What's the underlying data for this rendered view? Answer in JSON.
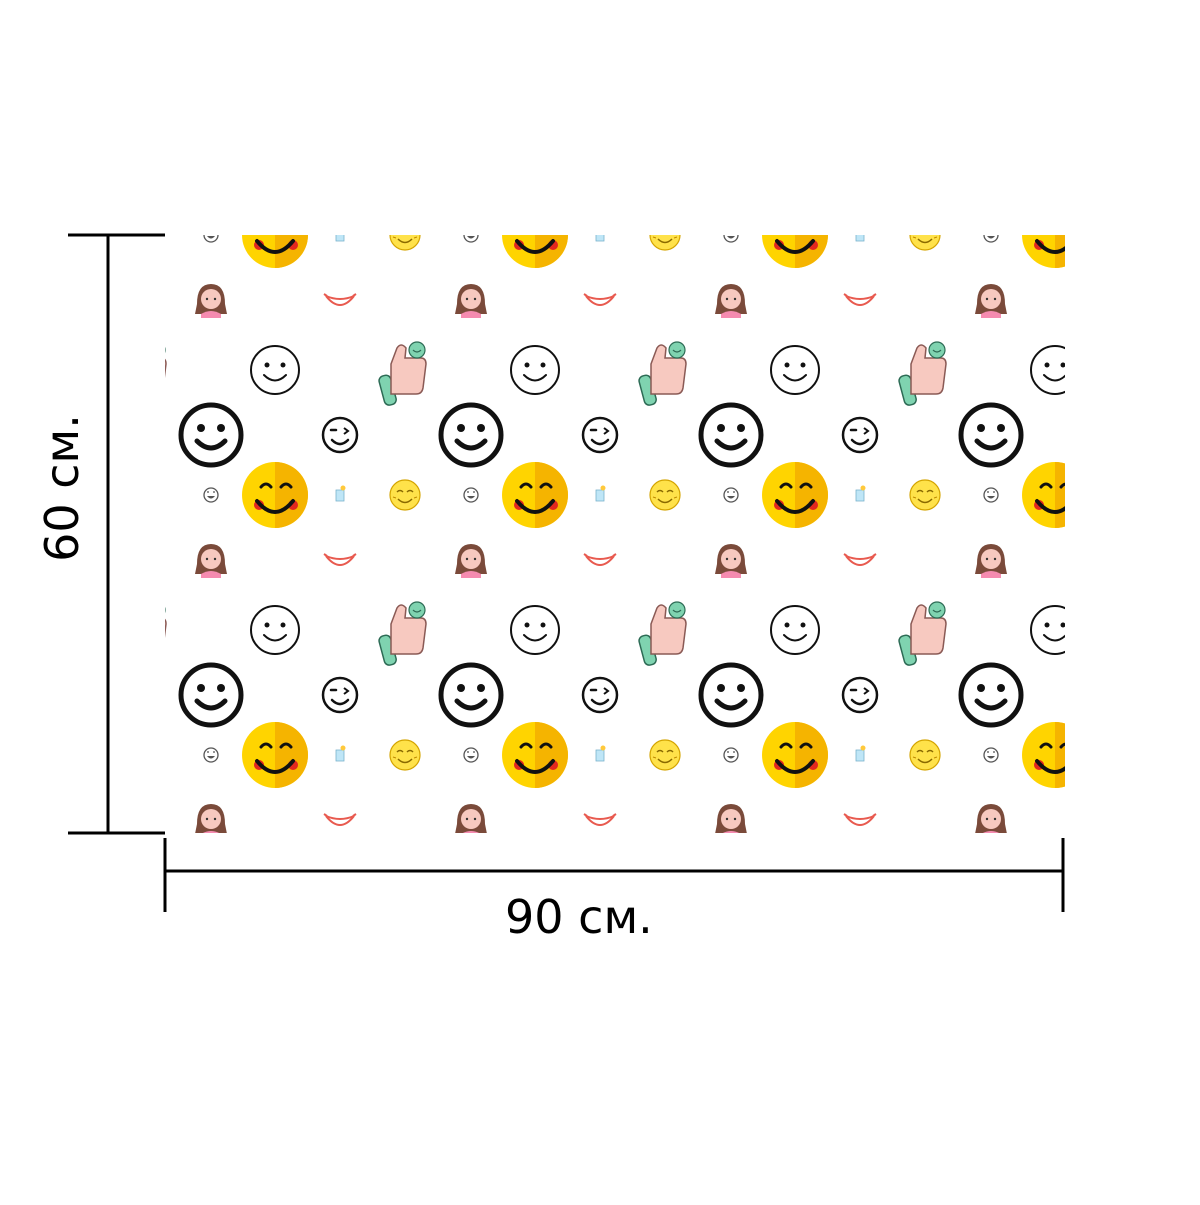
{
  "dimensions": {
    "width_label": "90 см.",
    "height_label": "60 см."
  },
  "pattern": {
    "background_color": "#ffffff",
    "motifs": [
      "yellow-smiley-icon",
      "outline-smiley-icon",
      "bold-outline-smiley-icon",
      "thumbs-up-icon",
      "girl-face-icon",
      "smile-lips-icon",
      "wink-smiley-icon",
      "grin-icon",
      "drink-glass-icon",
      "blush-smiley-icon"
    ],
    "colors": {
      "yellow": "#ffd400",
      "yellow_dark": "#f5b400",
      "outline": "#111111",
      "skin": "#f7c9c0",
      "sleeve": "#7fd3b0",
      "lips": "#e85a4f",
      "hair": "#7a4a3a",
      "shirt": "#f58bb0",
      "cheek": "#e2281f"
    }
  }
}
